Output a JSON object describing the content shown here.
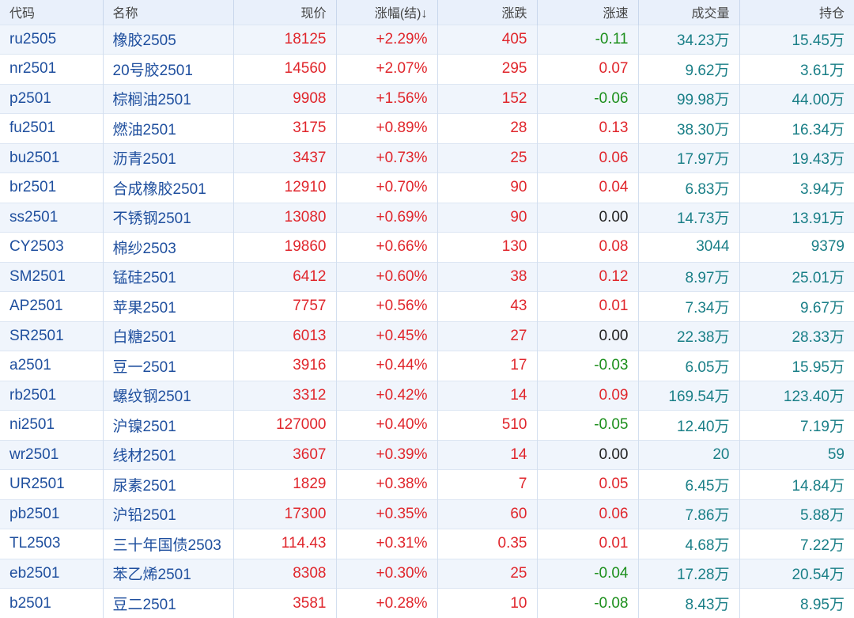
{
  "colors": {
    "up": "#e0262c",
    "down": "#1c8f1c",
    "flat": "#222222",
    "link": "#1f4f9e",
    "volume": "#1a7f87",
    "header_bg": "#e9f0fb",
    "row_alt_bg": "#f0f5fc"
  },
  "table": {
    "headers": {
      "code": "代码",
      "name": "名称",
      "price": "现价",
      "pct": "涨幅(结)↓",
      "chg": "涨跌",
      "speed": "涨速",
      "vol": "成交量",
      "oi": "持仓"
    },
    "rows": [
      {
        "code": "ru2505",
        "name": "橡胶2505",
        "price": "18125",
        "pct": "+2.29%",
        "chg": "405",
        "speed": "-0.11",
        "speed_dir": "down",
        "vol": "34.23万",
        "oi": "15.45万"
      },
      {
        "code": "nr2501",
        "name": "20号胶2501",
        "price": "14560",
        "pct": "+2.07%",
        "chg": "295",
        "speed": "0.07",
        "speed_dir": "up",
        "vol": "9.62万",
        "oi": "3.61万"
      },
      {
        "code": "p2501",
        "name": "棕榈油2501",
        "price": "9908",
        "pct": "+1.56%",
        "chg": "152",
        "speed": "-0.06",
        "speed_dir": "down",
        "vol": "99.98万",
        "oi": "44.00万"
      },
      {
        "code": "fu2501",
        "name": "燃油2501",
        "price": "3175",
        "pct": "+0.89%",
        "chg": "28",
        "speed": "0.13",
        "speed_dir": "up",
        "vol": "38.30万",
        "oi": "16.34万"
      },
      {
        "code": "bu2501",
        "name": "沥青2501",
        "price": "3437",
        "pct": "+0.73%",
        "chg": "25",
        "speed": "0.06",
        "speed_dir": "up",
        "vol": "17.97万",
        "oi": "19.43万"
      },
      {
        "code": "br2501",
        "name": "合成橡胶2501",
        "price": "12910",
        "pct": "+0.70%",
        "chg": "90",
        "speed": "0.04",
        "speed_dir": "up",
        "vol": "6.83万",
        "oi": "3.94万"
      },
      {
        "code": "ss2501",
        "name": "不锈钢2501",
        "price": "13080",
        "pct": "+0.69%",
        "chg": "90",
        "speed": "0.00",
        "speed_dir": "flat",
        "vol": "14.73万",
        "oi": "13.91万"
      },
      {
        "code": "CY2503",
        "name": "棉纱2503",
        "price": "19860",
        "pct": "+0.66%",
        "chg": "130",
        "speed": "0.08",
        "speed_dir": "up",
        "vol": "3044",
        "oi": "9379"
      },
      {
        "code": "SM2501",
        "name": "锰硅2501",
        "price": "6412",
        "pct": "+0.60%",
        "chg": "38",
        "speed": "0.12",
        "speed_dir": "up",
        "vol": "8.97万",
        "oi": "25.01万"
      },
      {
        "code": "AP2501",
        "name": "苹果2501",
        "price": "7757",
        "pct": "+0.56%",
        "chg": "43",
        "speed": "0.01",
        "speed_dir": "up",
        "vol": "7.34万",
        "oi": "9.67万"
      },
      {
        "code": "SR2501",
        "name": "白糖2501",
        "price": "6013",
        "pct": "+0.45%",
        "chg": "27",
        "speed": "0.00",
        "speed_dir": "flat",
        "vol": "22.38万",
        "oi": "28.33万"
      },
      {
        "code": "a2501",
        "name": "豆一2501",
        "price": "3916",
        "pct": "+0.44%",
        "chg": "17",
        "speed": "-0.03",
        "speed_dir": "down",
        "vol": "6.05万",
        "oi": "15.95万"
      },
      {
        "code": "rb2501",
        "name": "螺纹钢2501",
        "price": "3312",
        "pct": "+0.42%",
        "chg": "14",
        "speed": "0.09",
        "speed_dir": "up",
        "vol": "169.54万",
        "oi": "123.40万"
      },
      {
        "code": "ni2501",
        "name": "沪镍2501",
        "price": "127000",
        "pct": "+0.40%",
        "chg": "510",
        "speed": "-0.05",
        "speed_dir": "down",
        "vol": "12.40万",
        "oi": "7.19万"
      },
      {
        "code": "wr2501",
        "name": "线材2501",
        "price": "3607",
        "pct": "+0.39%",
        "chg": "14",
        "speed": "0.00",
        "speed_dir": "flat",
        "vol": "20",
        "oi": "59"
      },
      {
        "code": "UR2501",
        "name": "尿素2501",
        "price": "1829",
        "pct": "+0.38%",
        "chg": "7",
        "speed": "0.05",
        "speed_dir": "up",
        "vol": "6.45万",
        "oi": "14.84万"
      },
      {
        "code": "pb2501",
        "name": "沪铅2501",
        "price": "17300",
        "pct": "+0.35%",
        "chg": "60",
        "speed": "0.06",
        "speed_dir": "up",
        "vol": "7.86万",
        "oi": "5.88万"
      },
      {
        "code": "TL2503",
        "name": "三十年国债2503",
        "price": "114.43",
        "pct": "+0.31%",
        "chg": "0.35",
        "speed": "0.01",
        "speed_dir": "up",
        "vol": "4.68万",
        "oi": "7.22万"
      },
      {
        "code": "eb2501",
        "name": "苯乙烯2501",
        "price": "8308",
        "pct": "+0.30%",
        "chg": "25",
        "speed": "-0.04",
        "speed_dir": "down",
        "vol": "17.28万",
        "oi": "20.54万"
      },
      {
        "code": "b2501",
        "name": "豆二2501",
        "price": "3581",
        "pct": "+0.28%",
        "chg": "10",
        "speed": "-0.08",
        "speed_dir": "down",
        "vol": "8.43万",
        "oi": "8.95万"
      }
    ]
  }
}
